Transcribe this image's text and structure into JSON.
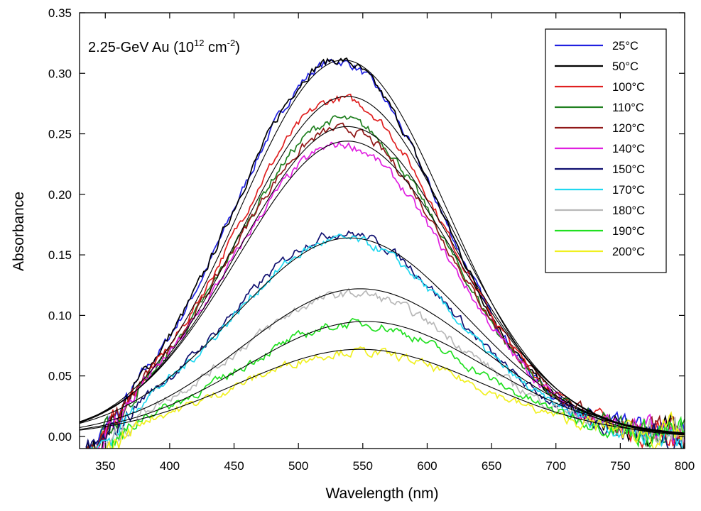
{
  "chart_data": {
    "type": "line",
    "annotation": {
      "main": "2.25-GeV Au (10",
      "exponent1": "12",
      "mid": " cm",
      "exponent2": "-2",
      "end": ")"
    },
    "xlabel": "Wavelength (nm)",
    "ylabel": "Absorbance",
    "xlim": [
      330,
      800
    ],
    "ylim": [
      -0.01,
      0.35
    ],
    "xticks": [
      350,
      400,
      450,
      500,
      550,
      600,
      650,
      700,
      750,
      800
    ],
    "xtick_labels": [
      "350",
      "400",
      "450",
      "500",
      "550",
      "600",
      "650",
      "700",
      "750",
      "800"
    ],
    "yticks": [
      0.0,
      0.05,
      0.1,
      0.15,
      0.2,
      0.25,
      0.3,
      0.35
    ],
    "ytick_labels": [
      "0.00",
      "0.05",
      "0.10",
      "0.15",
      "0.20",
      "0.25",
      "0.30",
      "0.35"
    ],
    "legend_position": "top-right",
    "series": [
      {
        "name": "25°C",
        "color": "#2020e0",
        "peak": 0.31,
        "center": 530,
        "width": 80
      },
      {
        "name": "50°C",
        "color": "#000000",
        "peak": 0.311,
        "center": 530,
        "width": 80
      },
      {
        "name": "100°C",
        "color": "#e02020",
        "peak": 0.279,
        "center": 533,
        "width": 82
      },
      {
        "name": "110°C",
        "color": "#208020",
        "peak": 0.262,
        "center": 533,
        "width": 82
      },
      {
        "name": "120°C",
        "color": "#901818",
        "peak": 0.254,
        "center": 533,
        "width": 84
      },
      {
        "name": "140°C",
        "color": "#e020e0",
        "peak": 0.241,
        "center": 533,
        "width": 84
      },
      {
        "name": "150°C",
        "color": "#101070",
        "peak": 0.168,
        "center": 535,
        "width": 86
      },
      {
        "name": "170°C",
        "color": "#20d8f0",
        "peak": 0.163,
        "center": 535,
        "width": 86
      },
      {
        "name": "180°C",
        "color": "#b8b8b8",
        "peak": 0.118,
        "center": 542,
        "width": 88
      },
      {
        "name": "190°C",
        "color": "#20e020",
        "peak": 0.093,
        "center": 545,
        "width": 90
      },
      {
        "name": "200°C",
        "color": "#f0f020",
        "peak": 0.07,
        "center": 545,
        "width": 92
      }
    ],
    "fits": [
      {
        "peak": 0.311,
        "center": 535,
        "width": 80
      },
      {
        "peak": 0.281,
        "center": 538,
        "width": 82
      },
      {
        "peak": 0.256,
        "center": 538,
        "width": 84
      },
      {
        "peak": 0.244,
        "center": 538,
        "width": 85
      },
      {
        "peak": 0.164,
        "center": 540,
        "width": 90
      },
      {
        "peak": 0.122,
        "center": 548,
        "width": 92
      },
      {
        "peak": 0.095,
        "center": 552,
        "width": 94
      },
      {
        "peak": 0.072,
        "center": 548,
        "width": 95
      }
    ]
  }
}
